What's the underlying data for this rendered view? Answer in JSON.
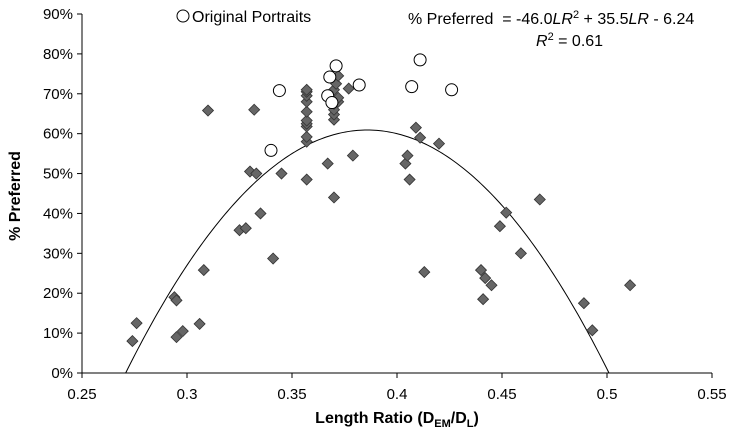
{
  "chart_data": {
    "type": "scatter",
    "xlabel_main": "Length Ratio (D",
    "xlabel_sub1": "EM",
    "xlabel_mid": "/D",
    "xlabel_sub2": "L",
    "xlabel_end": ")",
    "ylabel": "% Preferred",
    "xlim": [
      0.25,
      0.55
    ],
    "ylim": [
      0,
      0.9
    ],
    "x_ticks": [
      0.25,
      0.3,
      0.35,
      0.4,
      0.45,
      0.5,
      0.55
    ],
    "x_tick_labels": [
      "0.25",
      "0.3",
      "0.35",
      "0.4",
      "0.45",
      "0.5",
      "0.55"
    ],
    "y_ticks": [
      0,
      0.1,
      0.2,
      0.3,
      0.4,
      0.5,
      0.6,
      0.7,
      0.8,
      0.9
    ],
    "y_tick_labels": [
      "0%",
      "10%",
      "20%",
      "30%",
      "40%",
      "50%",
      "60%",
      "70%",
      "80%",
      "90%"
    ],
    "grid": false,
    "legend": {
      "marker": "open-circle",
      "label": "Original Portraits",
      "position": "top-center"
    },
    "equation": {
      "p1": "% Preferred  = -46.0",
      "v1": "LR",
      "s1": "2",
      "p2": " + 35.5",
      "v2": "LR",
      "p3": " - 6.24",
      "r": "R",
      "rs": "2",
      "r_rest": " = 0.61"
    },
    "fit": {
      "a": -46.0,
      "b": 35.5,
      "c": -6.24
    },
    "series": [
      {
        "marker": "diamond",
        "color": "#666666",
        "points": [
          [
            0.274,
            0.08
          ],
          [
            0.276,
            0.125
          ],
          [
            0.294,
            0.19
          ],
          [
            0.295,
            0.182
          ],
          [
            0.295,
            0.09
          ],
          [
            0.298,
            0.105
          ],
          [
            0.306,
            0.123
          ],
          [
            0.308,
            0.258
          ],
          [
            0.31,
            0.658
          ],
          [
            0.325,
            0.358
          ],
          [
            0.328,
            0.363
          ],
          [
            0.33,
            0.505
          ],
          [
            0.332,
            0.66
          ],
          [
            0.333,
            0.5
          ],
          [
            0.335,
            0.4
          ],
          [
            0.341,
            0.287
          ],
          [
            0.345,
            0.5
          ],
          [
            0.357,
            0.485
          ],
          [
            0.357,
            0.58
          ],
          [
            0.357,
            0.592
          ],
          [
            0.357,
            0.618
          ],
          [
            0.357,
            0.625
          ],
          [
            0.357,
            0.633
          ],
          [
            0.357,
            0.655
          ],
          [
            0.357,
            0.68
          ],
          [
            0.357,
            0.695
          ],
          [
            0.357,
            0.705
          ],
          [
            0.357,
            0.71
          ],
          [
            0.367,
            0.525
          ],
          [
            0.37,
            0.44
          ],
          [
            0.37,
            0.635
          ],
          [
            0.37,
            0.648
          ],
          [
            0.37,
            0.66
          ],
          [
            0.37,
            0.675
          ],
          [
            0.37,
            0.71
          ],
          [
            0.371,
            0.725
          ],
          [
            0.372,
            0.68
          ],
          [
            0.372,
            0.69
          ],
          [
            0.372,
            0.745
          ],
          [
            0.377,
            0.713
          ],
          [
            0.379,
            0.545
          ],
          [
            0.404,
            0.525
          ],
          [
            0.405,
            0.545
          ],
          [
            0.406,
            0.485
          ],
          [
            0.409,
            0.615
          ],
          [
            0.411,
            0.59
          ],
          [
            0.42,
            0.575
          ],
          [
            0.413,
            0.253
          ],
          [
            0.44,
            0.258
          ],
          [
            0.441,
            0.185
          ],
          [
            0.442,
            0.238
          ],
          [
            0.445,
            0.22
          ],
          [
            0.449,
            0.368
          ],
          [
            0.452,
            0.402
          ],
          [
            0.459,
            0.3
          ],
          [
            0.468,
            0.435
          ],
          [
            0.489,
            0.175
          ],
          [
            0.493,
            0.107
          ],
          [
            0.511,
            0.22
          ]
        ]
      },
      {
        "name": "Original Portraits",
        "marker": "open-circle",
        "color": "#000000",
        "points": [
          [
            0.34,
            0.558
          ],
          [
            0.344,
            0.708
          ],
          [
            0.367,
            0.695
          ],
          [
            0.368,
            0.742
          ],
          [
            0.369,
            0.678
          ],
          [
            0.371,
            0.77
          ],
          [
            0.382,
            0.722
          ],
          [
            0.407,
            0.718
          ],
          [
            0.411,
            0.785
          ],
          [
            0.426,
            0.71
          ]
        ]
      }
    ]
  }
}
